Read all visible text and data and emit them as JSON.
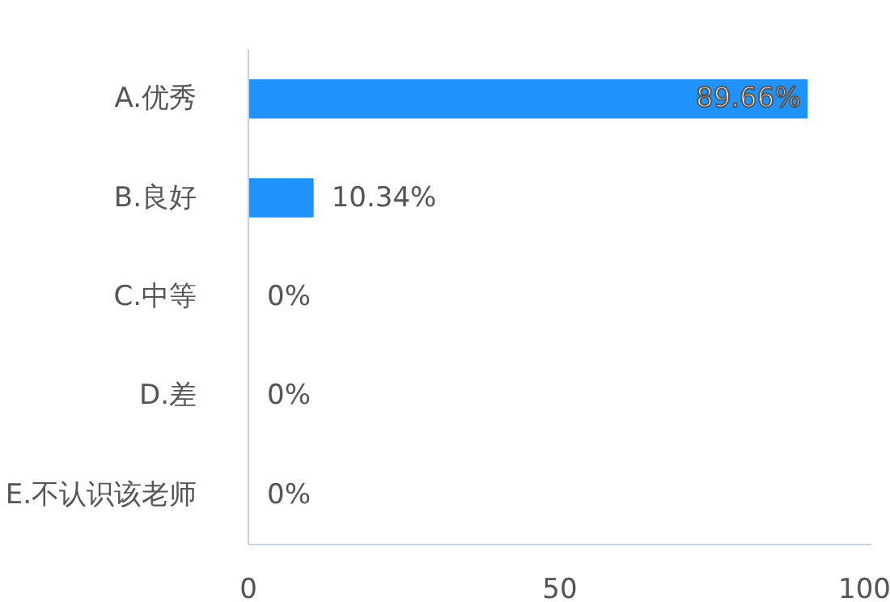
{
  "chart_data": {
    "type": "bar",
    "orientation": "horizontal",
    "categories": [
      "A.优秀",
      "B.良好",
      "C.中等",
      "D.差",
      "E.不认识该老师"
    ],
    "values": [
      89.66,
      10.34,
      0,
      0,
      0
    ],
    "value_labels": [
      "89.66%",
      "10.34%",
      "0%",
      "0%",
      "0%"
    ],
    "color": "#1f93fb",
    "xlim": [
      0,
      100
    ],
    "xticks": [
      0,
      50,
      100
    ],
    "grid": false
  }
}
